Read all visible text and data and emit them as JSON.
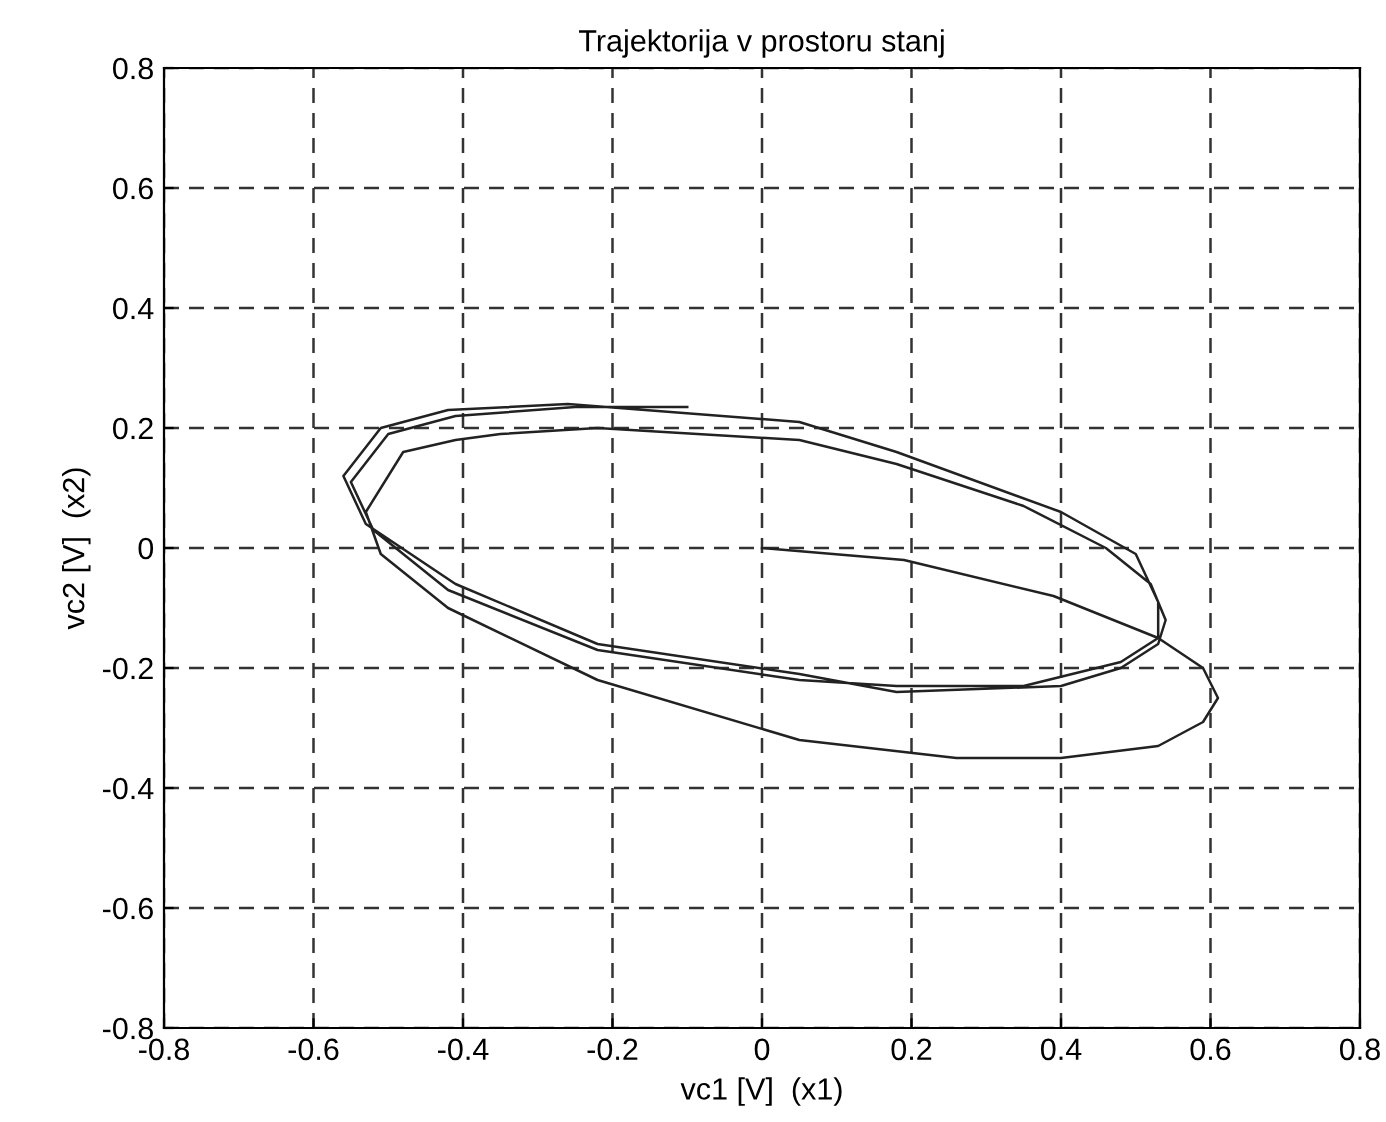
{
  "chart_data": {
    "type": "line",
    "title": "Trajektorija v prostoru stanj",
    "xlabel": "vc1 [V]  (x1)",
    "ylabel": "vc2 [V]  (x2)",
    "xlim": [
      -0.8,
      0.8
    ],
    "ylim": [
      -0.8,
      0.8
    ],
    "xticks": [
      -0.8,
      -0.6,
      -0.4,
      -0.2,
      0,
      0.2,
      0.4,
      0.6,
      0.8
    ],
    "yticks": [
      -0.8,
      -0.6,
      -0.4,
      -0.2,
      0,
      0.2,
      0.4,
      0.6,
      0.8
    ],
    "grid": true,
    "line_style": "solid",
    "marker": "none",
    "series": [
      {
        "color": "#222222",
        "x": [
          0,
          0.19,
          0.39,
          0.53,
          0.59,
          0.61,
          0.59,
          0.53,
          0.4,
          0.26,
          0.05,
          -0.22,
          -0.42,
          -0.51,
          -0.53,
          -0.48,
          -0.41,
          -0.35,
          -0.22,
          0.05,
          0.18,
          0.35,
          0.46,
          0.52,
          0.54,
          0.53,
          0.48,
          0.4,
          0.18,
          0.05,
          -0.22,
          -0.41,
          -0.53,
          -0.56,
          -0.51,
          -0.42,
          -0.26,
          0.05,
          0.18,
          0.4,
          0.5,
          0.53,
          0.53,
          0.48,
          0.35,
          0.18,
          0.05,
          -0.22,
          -0.42,
          -0.52,
          -0.55,
          -0.5,
          -0.41,
          -0.25,
          -0.1
        ],
        "values": [
          0,
          -0.02,
          -0.08,
          -0.15,
          -0.2,
          -0.25,
          -0.29,
          -0.33,
          -0.35,
          -0.35,
          -0.32,
          -0.22,
          -0.1,
          -0.01,
          0.06,
          0.16,
          0.18,
          0.19,
          0.2,
          0.18,
          0.14,
          0.07,
          0,
          -0.06,
          -0.12,
          -0.16,
          -0.2,
          -0.23,
          -0.24,
          -0.21,
          -0.16,
          -0.06,
          0.04,
          0.12,
          0.2,
          0.23,
          0.24,
          0.21,
          0.16,
          0.06,
          -0.01,
          -0.09,
          -0.15,
          -0.19,
          -0.23,
          -0.23,
          -0.22,
          -0.17,
          -0.07,
          0.03,
          0.11,
          0.19,
          0.22,
          0.235,
          0.235
        ]
      }
    ]
  }
}
